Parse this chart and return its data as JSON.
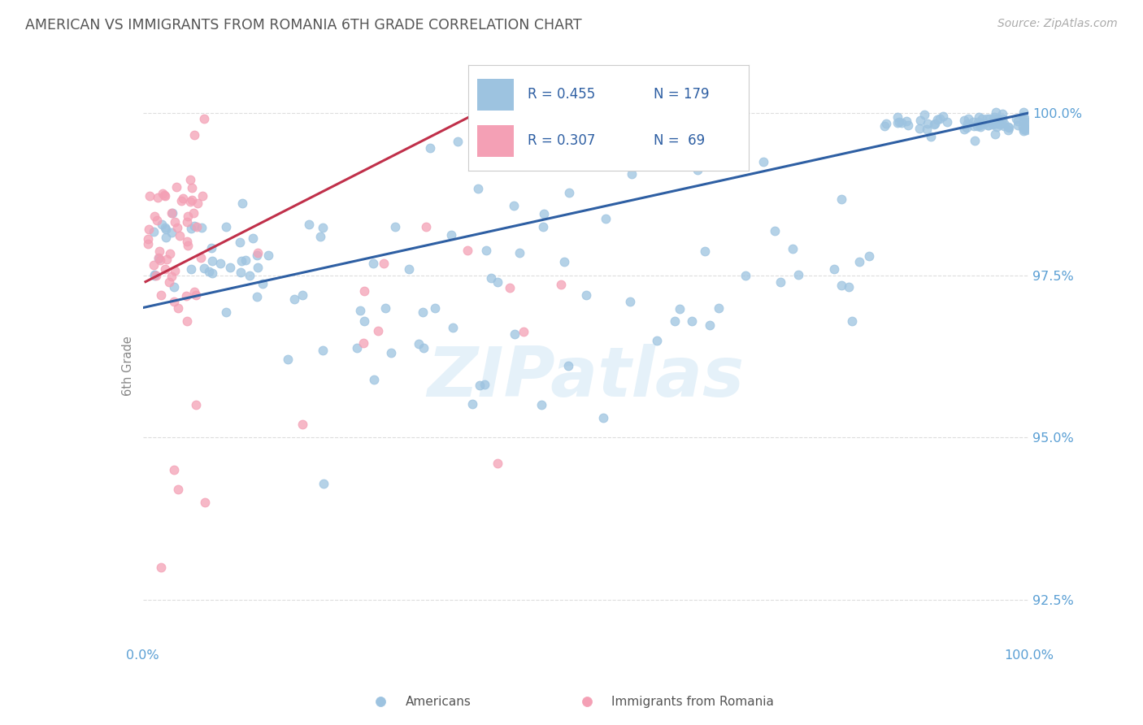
{
  "title": "AMERICAN VS IMMIGRANTS FROM ROMANIA 6TH GRADE CORRELATION CHART",
  "source": "Source: ZipAtlas.com",
  "ylabel": "6th Grade",
  "xlim": [
    0.0,
    1.0
  ],
  "ylim": [
    0.918,
    1.004
  ],
  "yticks": [
    0.925,
    0.95,
    0.975,
    1.0
  ],
  "ytick_labels": [
    "92.5%",
    "95.0%",
    "97.5%",
    "100.0%"
  ],
  "watermark_text": "ZIPatlas",
  "blue_color": "#9dc3e0",
  "pink_color": "#f4a0b5",
  "blue_line_color": "#2e5fa3",
  "pink_line_color": "#c0304a",
  "title_color": "#555555",
  "axis_label_color": "#888888",
  "tick_label_color": "#5a9fd4",
  "grid_color": "#dddddd",
  "background_color": "#ffffff",
  "legend_border_color": "#cccccc",
  "legend_text_color": "#333333",
  "legend_val_color": "#2e5fa3",
  "blue_line_x0": 0.0,
  "blue_line_x1": 1.0,
  "blue_line_y0": 0.97,
  "blue_line_y1": 1.0,
  "pink_line_x0": 0.003,
  "pink_line_x1": 0.37,
  "pink_line_y0": 0.974,
  "pink_line_y1": 0.9995
}
